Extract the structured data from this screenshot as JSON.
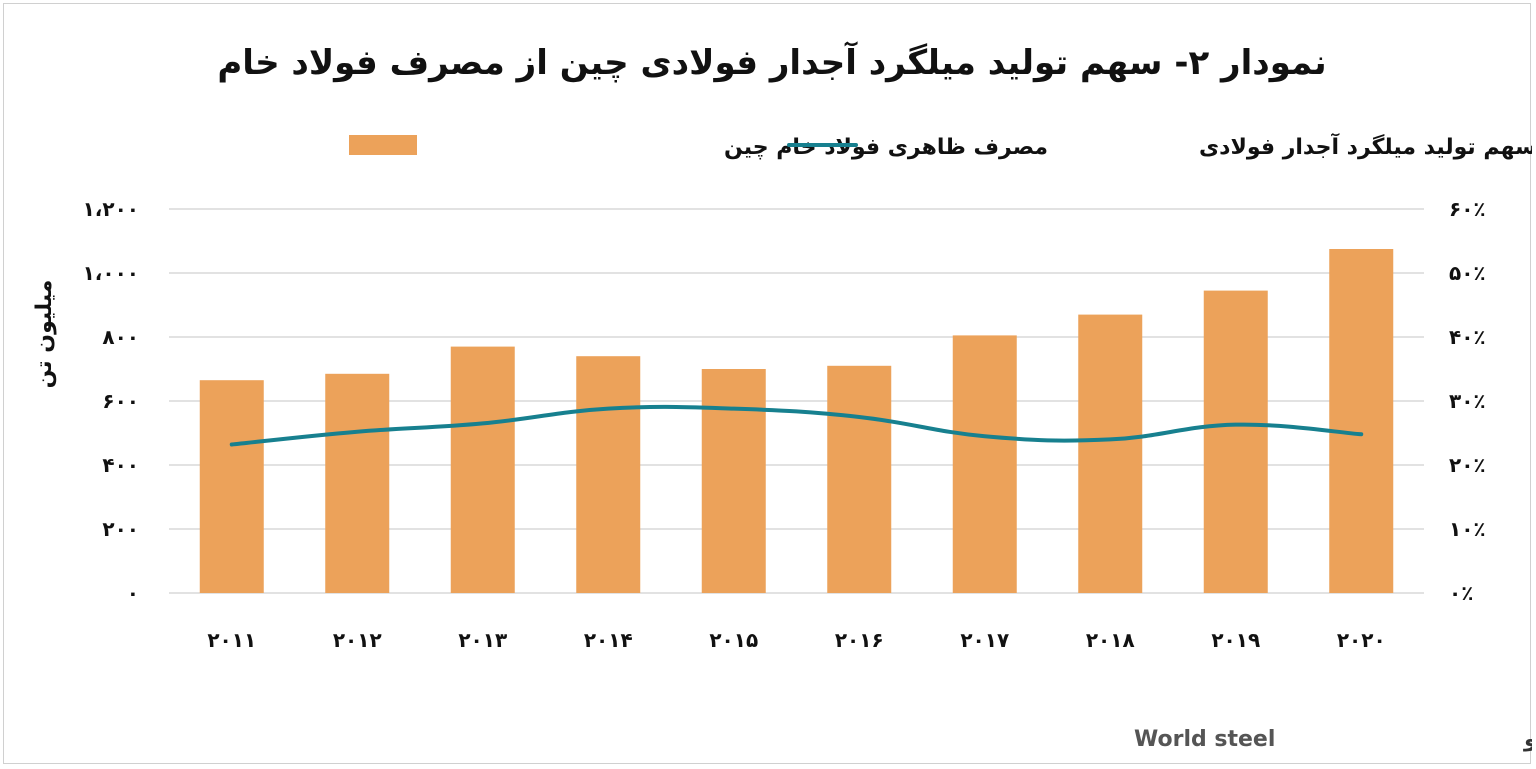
{
  "chart_data": {
    "type": "bar",
    "title": "نمودار ۲- سهم تولید میلگرد آجدار فولادی چین از مصرف فولاد خام",
    "categories": [
      "۲۰۱۱",
      "۲۰۱۲",
      "۲۰۱۳",
      "۲۰۱۴",
      "۲۰۱۵",
      "۲۰۱۶",
      "۲۰۱۷",
      "۲۰۱۸",
      "۲۰۱۹",
      "۲۰۲۰"
    ],
    "series": [
      {
        "name": "مصرف ظاهری فولاد خام چین",
        "type": "bar",
        "axis": "left",
        "color": "#ECA25A",
        "values": [
          665,
          685,
          770,
          740,
          700,
          710,
          805,
          870,
          945,
          1075
        ]
      },
      {
        "name": "سهم تولید میلگرد آجدار فولادی",
        "type": "line",
        "axis": "right",
        "color": "#17808F",
        "values": [
          23.2,
          25.2,
          26.5,
          28.8,
          28.8,
          27.5,
          24.5,
          24.0,
          26.3,
          24.8
        ]
      }
    ],
    "ylabel": "میلیون تن",
    "ylim": [
      0,
      1200
    ],
    "y2lim": [
      0,
      60
    ],
    "yticks": [
      "۰",
      "۲۰۰",
      "۴۰۰",
      "۶۰۰",
      "۸۰۰",
      "۱،۰۰۰",
      "۱،۲۰۰"
    ],
    "y2ticks": [
      "۰٪",
      "۱۰٪",
      "۲۰٪",
      "۳۰٪",
      "۴۰٪",
      "۵۰٪",
      "۶۰٪"
    ],
    "grid": true,
    "legend_position": "top"
  },
  "source": {
    "label": "منبع: مرکز آمار چین و",
    "label_en": "World steel"
  }
}
